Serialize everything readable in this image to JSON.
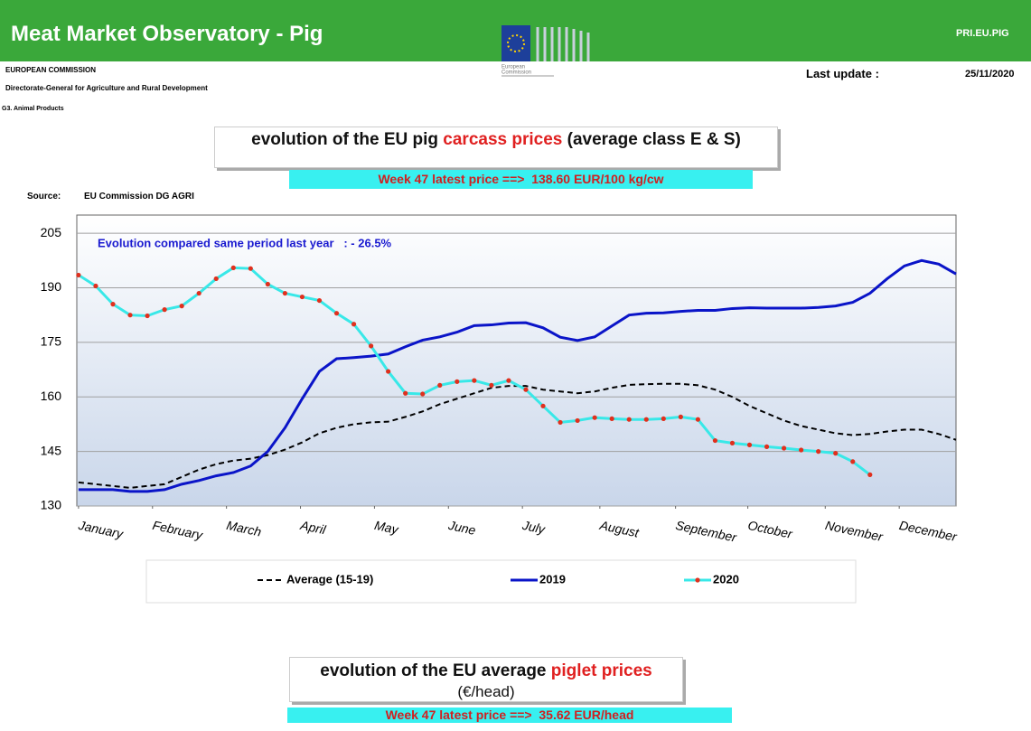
{
  "header": {
    "title": "Meat Market Observatory - Pig",
    "code": "PRI.EU.PIG",
    "logo_text": [
      "European",
      "Commission"
    ],
    "org": "EUROPEAN COMMISSION",
    "dg": "Directorate-General for Agriculture and Rural Development",
    "unit": "G3. Animal Products",
    "last_update_label": "Last update :",
    "last_update": "25/11/2020"
  },
  "section1": {
    "title_parts": [
      "evolution of the EU pig",
      "carcass prices",
      "(average class E & S)"
    ],
    "latest": "Week 47 latest price ==>  138.60 EUR/100 kg/cw",
    "source_label": "Source:",
    "source": "EU Commission DG AGRI"
  },
  "chart_data": {
    "type": "line",
    "annotation": "Evolution compared same period last year   : - 26.5%",
    "x": [
      1,
      2,
      3,
      4,
      5,
      6,
      7,
      8,
      9,
      10,
      11,
      12,
      13,
      14,
      15,
      16,
      17,
      18,
      19,
      20,
      21,
      22,
      23,
      24,
      25,
      26,
      27,
      28,
      29,
      30,
      31,
      32,
      33,
      34,
      35,
      36,
      37,
      38,
      39,
      40,
      41,
      42,
      43,
      44,
      45,
      46,
      47,
      48,
      49,
      50,
      51,
      52
    ],
    "xlim": [
      0.9,
      52
    ],
    "xticks": [
      {
        "value": 1,
        "label": "January"
      },
      {
        "value": 5.3,
        "label": "February"
      },
      {
        "value": 9.6,
        "label": "March"
      },
      {
        "value": 13.9,
        "label": "April"
      },
      {
        "value": 18.2,
        "label": "May"
      },
      {
        "value": 22.5,
        "label": "June"
      },
      {
        "value": 26.8,
        "label": "July"
      },
      {
        "value": 31.3,
        "label": "August"
      },
      {
        "value": 35.7,
        "label": "September"
      },
      {
        "value": 39.9,
        "label": "October"
      },
      {
        "value": 44.4,
        "label": "November"
      },
      {
        "value": 48.7,
        "label": "December"
      }
    ],
    "ylim": [
      130,
      210
    ],
    "yticks": [
      130,
      145,
      160,
      175,
      190,
      205
    ],
    "grid": true,
    "series": [
      {
        "name": "Average (15-19)",
        "color": "#000000",
        "line_style": "dashed",
        "values": [
          136.5,
          136,
          135.5,
          135,
          135.5,
          136,
          138,
          140,
          141.5,
          142.5,
          143,
          144,
          145.5,
          147.5,
          150,
          151.5,
          152.5,
          153,
          153.2,
          154.5,
          156,
          158,
          159.5,
          161,
          162.5,
          163,
          163,
          162,
          161.5,
          161,
          161.5,
          162.5,
          163.3,
          163.5,
          163.6,
          163.6,
          163.2,
          162,
          160,
          157.5,
          155.5,
          153.5,
          152,
          151,
          150,
          149.5,
          149.8,
          150.5,
          151,
          151,
          149.8,
          148.2
        ]
      },
      {
        "name": "2019",
        "color": "#0a14c8",
        "line_style": "solid",
        "values": [
          134.5,
          134.5,
          134.5,
          134,
          134,
          134.5,
          136,
          137,
          138.3,
          139.2,
          141,
          145,
          151.5,
          159.5,
          167,
          170.5,
          170.8,
          171.2,
          171.8,
          173.8,
          175.6,
          176.5,
          177.8,
          179.6,
          179.8,
          180.3,
          180.4,
          179,
          176.4,
          175.5,
          176.5,
          179.5,
          182.5,
          183,
          183.1,
          183.5,
          183.8,
          183.8,
          184.3,
          184.5,
          184.4,
          184.4,
          184.4,
          184.6,
          185,
          186,
          188.5,
          192.5,
          196,
          197.5,
          196.5,
          193.8
        ]
      },
      {
        "name": "2020",
        "color": "#38e8e8",
        "line_style": "solid",
        "marker_color": "#e0301e",
        "values": [
          193.5,
          190.5,
          185.5,
          182.5,
          182.3,
          184,
          185,
          188.5,
          192.5,
          195.5,
          195.3,
          191,
          188.5,
          187.5,
          186.5,
          183,
          180,
          174,
          167,
          161,
          160.8,
          163.2,
          164.2,
          164.5,
          163.2,
          164.5,
          162,
          157.5,
          153,
          153.5,
          154.3,
          154,
          153.8,
          153.8,
          154,
          154.5,
          153.8,
          148,
          147.3,
          146.8,
          146.3,
          145.9,
          145.4,
          145,
          144.5,
          142.2,
          138.6,
          null,
          null,
          null,
          null,
          null
        ]
      }
    ]
  },
  "section2": {
    "title_parts": [
      "evolution of the EU average",
      "piglet prices"
    ],
    "subtitle": "(€/head)",
    "latest": "Week 47 latest price ==>  35.62 EUR/head"
  }
}
